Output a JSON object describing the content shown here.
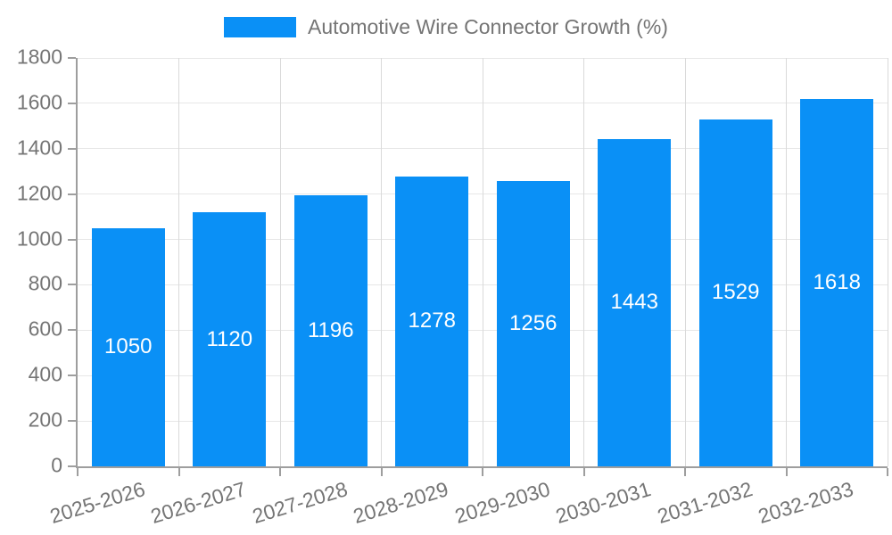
{
  "chart_data": {
    "type": "bar",
    "title": "Automotive Wire Connector Growth (%)",
    "categories": [
      "2025-2026",
      "2026-2027",
      "2027-2028",
      "2028-2029",
      "2029-2030",
      "2030-2031",
      "2031-2032",
      "2032-2033"
    ],
    "values": [
      1050,
      1120,
      1196,
      1278,
      1256,
      1443,
      1529,
      1618
    ],
    "value_labels": [
      "1050",
      "1120",
      "1196",
      "1278",
      "1256",
      "1443",
      "1529",
      "1618"
    ],
    "xlabel": "",
    "ylabel": "",
    "ylim": [
      0,
      1800
    ],
    "ytick_labels": [
      "0",
      "200",
      "400",
      "600",
      "800",
      "1000",
      "1200",
      "1400",
      "1600",
      "1800"
    ],
    "grid": true,
    "legend_position": "top",
    "colors": {
      "bar": "#0a90f6",
      "axis_text": "#757575",
      "value_text": "#ffffff",
      "grid_h": "#e7e7e7",
      "grid_v": "#dadada",
      "axis_line": "#9e9e9e"
    }
  }
}
